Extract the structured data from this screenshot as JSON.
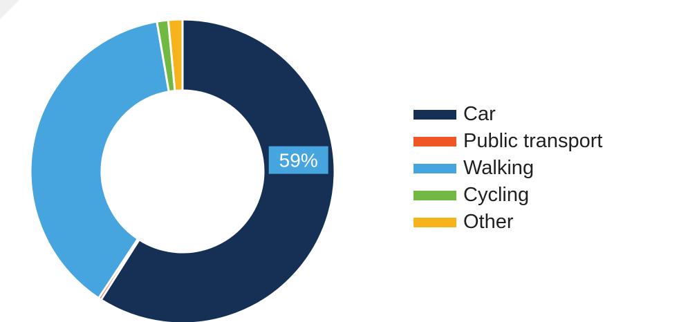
{
  "chart_data": {
    "type": "pie",
    "variant": "donut",
    "categories": [
      "Car",
      "Public transport",
      "Walking",
      "Cycling",
      "Other"
    ],
    "values": [
      59,
      0.3,
      38,
      1.2,
      1.5
    ],
    "colors": [
      "#152f55",
      "#ef5525",
      "#46a4de",
      "#72b944",
      "#f6b31c"
    ],
    "data_labels": [
      "59%",
      "",
      "",
      "",
      ""
    ],
    "legend_position": "right"
  }
}
